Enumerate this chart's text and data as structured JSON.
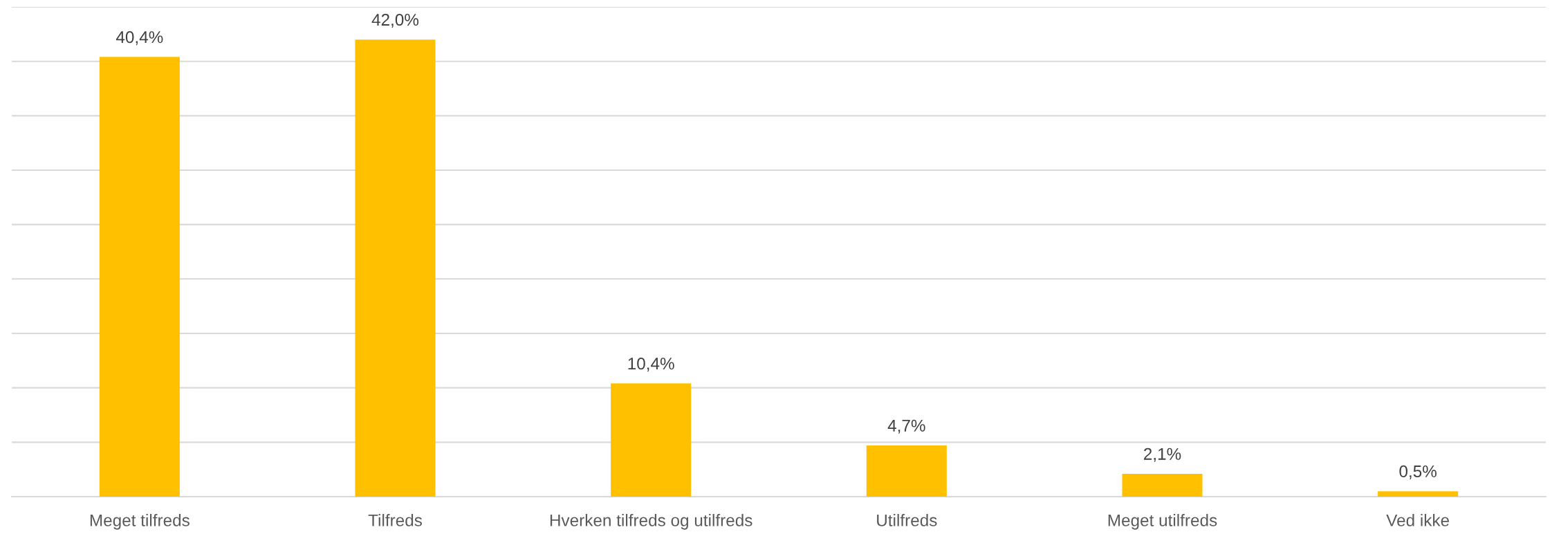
{
  "chart_data": {
    "type": "bar",
    "categories": [
      "Meget tilfreds",
      "Tilfreds",
      "Hverken tilfreds og utilfreds",
      "Utilfreds",
      "Meget utilfreds",
      "Ved ikke"
    ],
    "values": [
      40.4,
      42.0,
      10.4,
      4.7,
      2.1,
      0.5
    ],
    "value_labels": [
      "40,4%",
      "42,0%",
      "10,4%",
      "4,7%",
      "2,1%",
      "0,5%"
    ],
    "color": "#ffc000",
    "ylim": [
      0,
      45
    ],
    "yticks": [
      {
        "value": 0,
        "label": null
      },
      {
        "value": 5,
        "label": null
      },
      {
        "value": 10,
        "label": null
      },
      {
        "value": 15,
        "label": null
      },
      {
        "value": 20,
        "label": null
      },
      {
        "value": 25,
        "label": null
      },
      {
        "value": 30,
        "label": null
      },
      {
        "value": 35,
        "label": null
      },
      {
        "value": 40,
        "label": null
      },
      {
        "value": 45,
        "label": null
      }
    ],
    "grid": "y",
    "tick_labels": "x",
    "legend": false
  }
}
